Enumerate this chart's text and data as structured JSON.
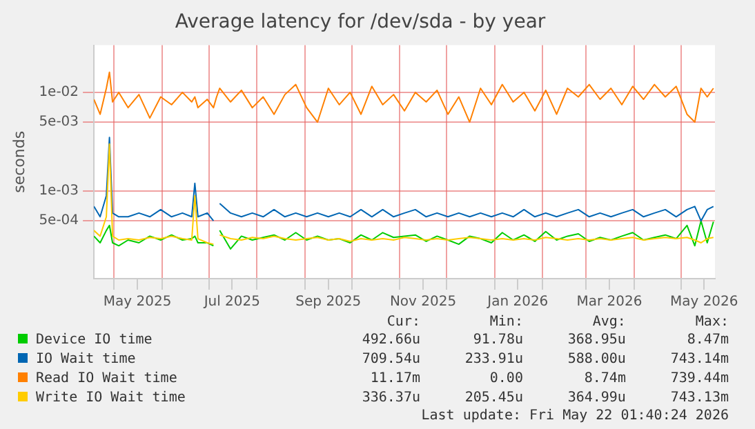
{
  "chart_data": {
    "type": "line",
    "title": "Average latency for /dev/sda - by year",
    "ylabel": "seconds",
    "x": [
      "2025-04-18",
      "2025-04-22",
      "2025-04-26",
      "2025-04-28",
      "2025-04-30",
      "2025-05-04",
      "2025-05-10",
      "2025-05-17",
      "2025-05-24",
      "2025-05-31",
      "2025-06-07",
      "2025-06-14",
      "2025-06-20",
      "2025-06-22",
      "2025-06-24",
      "2025-06-30",
      "2025-07-04",
      "2025-07-06",
      "2025-07-08",
      "2025-07-15",
      "2025-07-22",
      "2025-07-29",
      "2025-08-05",
      "2025-08-12",
      "2025-08-19",
      "2025-08-26",
      "2025-09-02",
      "2025-09-09",
      "2025-09-16",
      "2025-09-23",
      "2025-09-30",
      "2025-10-07",
      "2025-10-14",
      "2025-10-21",
      "2025-10-28",
      "2025-11-04",
      "2025-11-11",
      "2025-11-18",
      "2025-11-25",
      "2025-12-02",
      "2025-12-09",
      "2025-12-16",
      "2025-12-23",
      "2025-12-30",
      "2026-01-06",
      "2026-01-13",
      "2026-01-20",
      "2026-01-27",
      "2026-02-03",
      "2026-02-10",
      "2026-02-17",
      "2026-02-24",
      "2026-03-03",
      "2026-03-10",
      "2026-03-17",
      "2026-03-24",
      "2026-03-31",
      "2026-04-07",
      "2026-04-14",
      "2026-04-21",
      "2026-04-28",
      "2026-05-05",
      "2026-05-10",
      "2026-05-14",
      "2026-05-18",
      "2026-05-22"
    ],
    "series": [
      {
        "name": "Device IO time",
        "color": "#00cc00",
        "values": [
          0.00035,
          0.0003,
          0.0004,
          0.00045,
          0.0003,
          0.00028,
          0.00032,
          0.0003,
          0.00035,
          0.00032,
          0.00036,
          0.00032,
          0.00033,
          0.00035,
          0.0003,
          0.0003,
          0.00028,
          null,
          0.0004,
          0.00026,
          0.00035,
          0.00032,
          0.00034,
          0.00036,
          0.00032,
          0.00038,
          0.00032,
          0.00035,
          0.00032,
          0.00033,
          0.0003,
          0.00036,
          0.00032,
          0.00038,
          0.00034,
          0.00035,
          0.00036,
          0.00031,
          0.00035,
          0.00032,
          0.00029,
          0.00035,
          0.00033,
          0.0003,
          0.00038,
          0.00032,
          0.00036,
          0.00031,
          0.00039,
          0.00032,
          0.00035,
          0.00037,
          0.00031,
          0.00034,
          0.00032,
          0.00035,
          0.00038,
          0.00032,
          0.00034,
          0.00036,
          0.00033,
          0.00045,
          0.00028,
          0.0005,
          0.0003,
          0.00049
        ]
      },
      {
        "name": "IO Wait time",
        "color": "#0066b3",
        "values": [
          0.0007,
          0.00055,
          0.0009,
          0.0035,
          0.0006,
          0.00055,
          0.00055,
          0.0006,
          0.00055,
          0.00065,
          0.00055,
          0.0006,
          0.00055,
          0.0012,
          0.00055,
          0.0006,
          0.0005,
          null,
          0.00075,
          0.0006,
          0.00055,
          0.0006,
          0.00055,
          0.00065,
          0.00055,
          0.0006,
          0.00055,
          0.0006,
          0.00055,
          0.0006,
          0.00055,
          0.00065,
          0.00055,
          0.00065,
          0.00055,
          0.0006,
          0.00065,
          0.00055,
          0.0006,
          0.00055,
          0.0006,
          0.00055,
          0.0006,
          0.00055,
          0.0006,
          0.00055,
          0.00065,
          0.00055,
          0.0006,
          0.00055,
          0.0006,
          0.00065,
          0.00055,
          0.0006,
          0.00055,
          0.0006,
          0.00065,
          0.00055,
          0.0006,
          0.00065,
          0.00055,
          0.00065,
          0.0007,
          0.0005,
          0.00065,
          0.0007
        ]
      },
      {
        "name": "Read IO Wait time",
        "color": "#ff8000",
        "values": [
          0.0085,
          0.006,
          0.011,
          0.016,
          0.008,
          0.01,
          0.007,
          0.0095,
          0.0055,
          0.009,
          0.0075,
          0.01,
          0.008,
          0.009,
          0.007,
          0.0085,
          0.007,
          0.009,
          0.011,
          0.008,
          0.0105,
          0.007,
          0.009,
          0.006,
          0.0095,
          0.012,
          0.007,
          0.005,
          0.011,
          0.0075,
          0.01,
          0.006,
          0.0115,
          0.0075,
          0.0095,
          0.0065,
          0.01,
          0.008,
          0.0105,
          0.006,
          0.009,
          0.005,
          0.011,
          0.0075,
          0.012,
          0.008,
          0.01,
          0.0065,
          0.0105,
          0.006,
          0.011,
          0.009,
          0.012,
          0.0085,
          0.011,
          0.0075,
          0.0115,
          0.0085,
          0.012,
          0.009,
          0.0115,
          0.006,
          0.005,
          0.011,
          0.009,
          0.011
        ]
      },
      {
        "name": "Write IO Wait time",
        "color": "#ffcc00",
        "values": [
          0.0004,
          0.00035,
          0.00055,
          0.003,
          0.00035,
          0.00032,
          0.00033,
          0.00032,
          0.00034,
          0.00033,
          0.00035,
          0.00033,
          0.00032,
          0.0009,
          0.00033,
          0.0003,
          0.00029,
          null,
          0.00036,
          0.00033,
          0.00032,
          0.00034,
          0.00033,
          0.00035,
          0.00033,
          0.00032,
          0.00033,
          0.00034,
          0.00032,
          0.00033,
          0.00031,
          0.00033,
          0.00032,
          0.00033,
          0.00032,
          0.00034,
          0.00033,
          0.00032,
          0.00033,
          0.00032,
          0.00033,
          0.00034,
          0.00033,
          0.00032,
          0.00033,
          0.00032,
          0.00033,
          0.00032,
          0.00034,
          0.00033,
          0.00032,
          0.00033,
          0.00032,
          0.00033,
          0.00032,
          0.00033,
          0.00034,
          0.00032,
          0.00033,
          0.00034,
          0.00033,
          0.00034,
          0.00032,
          0.0003,
          0.00033,
          0.00034
        ]
      }
    ],
    "log": "y",
    "ylim": [
      0.00013,
      0.03
    ],
    "yticks": [
      {
        "value": 0.0005,
        "label": "5e-04"
      },
      {
        "value": 0.001,
        "label": "1e-03"
      },
      {
        "value": 0.005,
        "label": "5e-03"
      },
      {
        "value": 0.01,
        "label": "1e-02"
      }
    ],
    "xlim": [
      "2025-04-18",
      "2026-05-23"
    ],
    "xticks": [
      {
        "value": "2025-05-01",
        "label": null
      },
      {
        "value": "2025-05-16",
        "label": "May 2025"
      },
      {
        "value": "2025-06-01",
        "label": null
      },
      {
        "value": "2025-07-01",
        "label": null
      },
      {
        "value": "2025-07-16",
        "label": "Jul 2025"
      },
      {
        "value": "2025-08-01",
        "label": null
      },
      {
        "value": "2025-09-01",
        "label": null
      },
      {
        "value": "2025-09-16",
        "label": "Sep 2025"
      },
      {
        "value": "2025-10-01",
        "label": null
      },
      {
        "value": "2025-11-01",
        "label": null
      },
      {
        "value": "2025-11-16",
        "label": "Nov 2025"
      },
      {
        "value": "2025-12-01",
        "label": null
      },
      {
        "value": "2026-01-01",
        "label": null
      },
      {
        "value": "2026-01-16",
        "label": "Jan 2026"
      },
      {
        "value": "2026-02-01",
        "label": null
      },
      {
        "value": "2026-03-01",
        "label": null
      },
      {
        "value": "2026-03-16",
        "label": "Mar 2026"
      },
      {
        "value": "2026-04-01",
        "label": null
      },
      {
        "value": "2026-05-01",
        "label": null
      },
      {
        "value": "2026-05-16",
        "label": "May 2026"
      }
    ],
    "grid": true,
    "legend": "bottom",
    "marker": "none",
    "line_style": "solid",
    "annotations": [
      "Cur:",
      "Min:",
      "Avg:",
      "Max:",
      "492.66u",
      "91.78u",
      "368.95u",
      "8.47m",
      "709.54u",
      "233.91u",
      "588.00u",
      "743.14m",
      "11.17m",
      "0.00",
      "8.74m",
      "739.44m",
      "336.37u",
      "205.45u",
      "364.99u",
      "743.13m",
      "Last update: Fri May 22 01:40:24 2026"
    ]
  }
}
